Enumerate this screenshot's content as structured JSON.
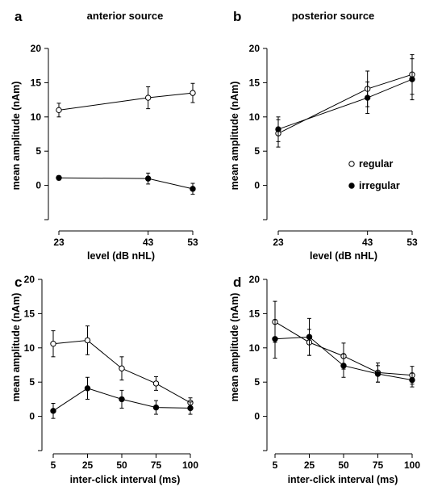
{
  "chart_data": [
    {
      "type": "line",
      "panel": "a",
      "title": "anterior source",
      "xlabel": "level (dB nHL)",
      "ylabel": "mean amplitude (nAm)",
      "x": [
        23,
        43,
        53
      ],
      "x_ticks": [
        "23",
        "43",
        "53"
      ],
      "ylim": [
        -5,
        20
      ],
      "y_ticks": [
        "0",
        "5",
        "10",
        "15",
        "20"
      ],
      "series": [
        {
          "marker": "open-circle",
          "values": [
            11.0,
            12.8,
            13.5
          ],
          "errors": [
            1.0,
            1.6,
            1.4
          ]
        },
        {
          "marker": "filled-circle",
          "values": [
            1.1,
            1.0,
            -0.5
          ],
          "errors": [
            0.3,
            0.8,
            0.8
          ]
        }
      ]
    },
    {
      "type": "line",
      "panel": "b",
      "title": "posterior source",
      "xlabel": "level (dB nHL)",
      "ylabel": "mean amplitude (nAm)",
      "x": [
        23,
        43,
        53
      ],
      "x_ticks": [
        "23",
        "43",
        "53"
      ],
      "ylim": [
        -5,
        20
      ],
      "y_ticks": [
        "0",
        "5",
        "10",
        "15",
        "20"
      ],
      "legend": {
        "position": "right-middle",
        "entries": [
          {
            "label": "regular",
            "marker": "open-circle"
          },
          {
            "label": "irregular",
            "marker": "filled-circle"
          }
        ]
      },
      "series": [
        {
          "name": "regular",
          "marker": "open-circle",
          "values": [
            7.6,
            14.1,
            16.2
          ],
          "errors": [
            2.0,
            2.6,
            2.9
          ]
        },
        {
          "name": "irregular",
          "marker": "filled-circle",
          "values": [
            8.2,
            12.8,
            15.5
          ],
          "errors": [
            1.8,
            2.3,
            3.0
          ]
        }
      ]
    },
    {
      "type": "line",
      "panel": "c",
      "title": "",
      "xlabel": "inter-click interval (ms)",
      "ylabel": "mean amplitude (nAm)",
      "categories": [
        "5",
        "25",
        "50",
        "75",
        "100"
      ],
      "ylim": [
        -5,
        20
      ],
      "y_ticks": [
        "0",
        "5",
        "10",
        "15",
        "20"
      ],
      "series": [
        {
          "marker": "open-circle",
          "values": [
            10.6,
            11.1,
            7.0,
            4.8,
            2.0
          ],
          "errors": [
            1.9,
            2.1,
            1.7,
            1.0,
            0.7
          ]
        },
        {
          "marker": "filled-circle",
          "values": [
            0.8,
            4.1,
            2.5,
            1.3,
            1.2
          ],
          "errors": [
            1.1,
            1.6,
            1.3,
            1.0,
            0.9
          ]
        }
      ]
    },
    {
      "type": "line",
      "panel": "d",
      "title": "",
      "xlabel": "inter-click interval (ms)",
      "ylabel": "mean amplitude (nAm)",
      "categories": [
        "5",
        "25",
        "50",
        "75",
        "100"
      ],
      "ylim": [
        -5,
        20
      ],
      "y_ticks": [
        "0",
        "5",
        "10",
        "15",
        "20"
      ],
      "series": [
        {
          "marker": "open-circle",
          "values": [
            13.8,
            10.8,
            8.8,
            6.4,
            6.0
          ],
          "errors": [
            3.0,
            1.9,
            1.9,
            1.4,
            1.3
          ]
        },
        {
          "marker": "filled-circle",
          "values": [
            11.3,
            11.6,
            7.4,
            6.2,
            5.3
          ],
          "errors": [
            2.8,
            2.7,
            1.7,
            1.2,
            1.0
          ]
        }
      ]
    }
  ]
}
